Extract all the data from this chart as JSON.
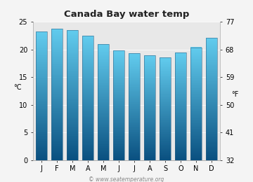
{
  "title": "Canada Bay water temp",
  "months": [
    "J",
    "F",
    "M",
    "A",
    "M",
    "J",
    "J",
    "A",
    "S",
    "O",
    "N",
    "D"
  ],
  "temps_c": [
    23.2,
    23.8,
    23.5,
    22.5,
    21.0,
    19.8,
    19.3,
    18.9,
    18.6,
    19.4,
    20.4,
    22.1
  ],
  "ylim_c": [
    0,
    25
  ],
  "yticks_c": [
    0,
    5,
    10,
    15,
    20,
    25
  ],
  "yticks_f": [
    32,
    41,
    50,
    59,
    68,
    77
  ],
  "ylabel_left": "°C",
  "ylabel_right": "°F",
  "bar_color_top": "#62ccee",
  "bar_color_bottom": "#0a5080",
  "bar_edge_color": "#336688",
  "bg_color": "#f4f4f4",
  "plot_bg_color": "#e8e8e8",
  "title_fontsize": 9.5,
  "axis_fontsize": 7,
  "tick_fontsize": 7,
  "watermark": "© www.seatemperature.org"
}
